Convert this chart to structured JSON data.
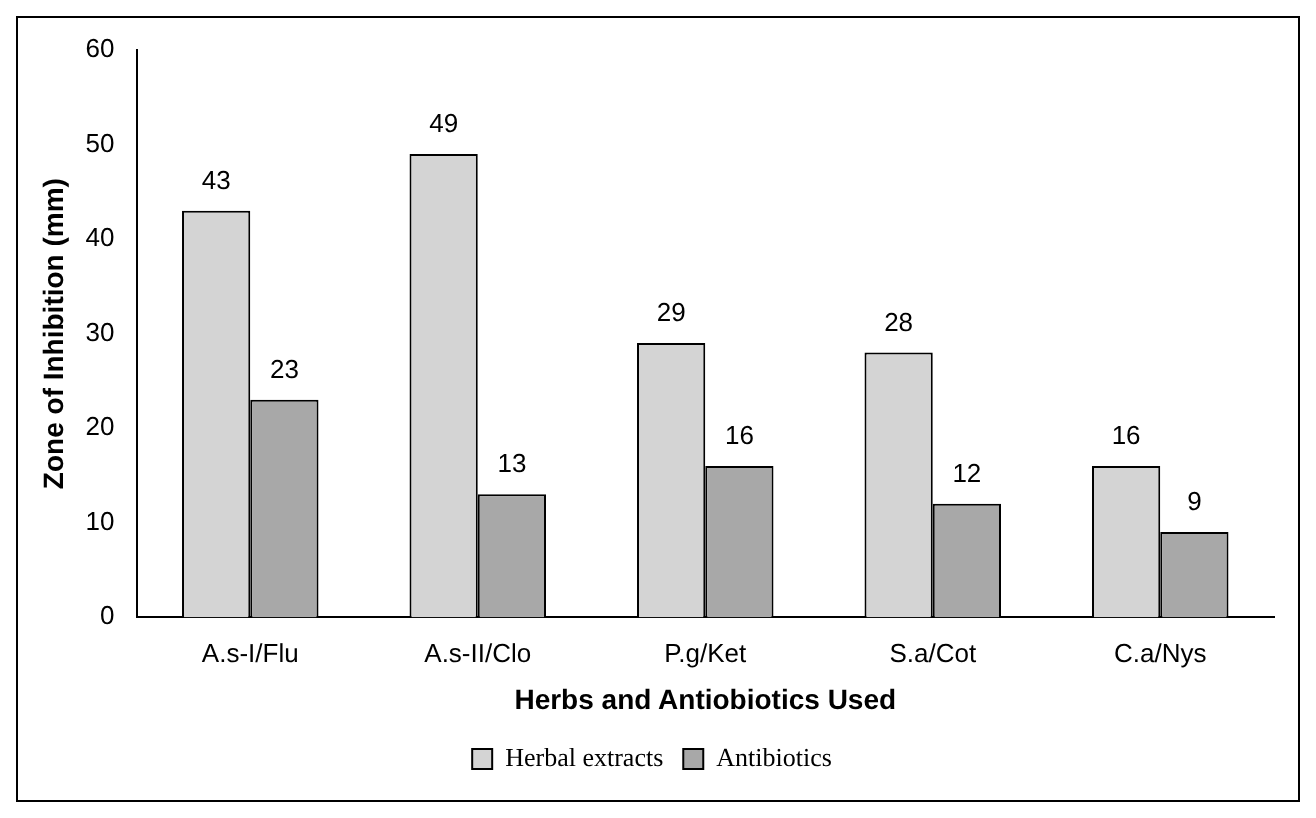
{
  "chart_data": {
    "type": "bar",
    "xlabel": "Herbs and Antiobiotics Used",
    "ylabel": "Zone of Inhibition (mm)",
    "categories": [
      "A.s-I/Flu",
      "A.s-II/Clo",
      "P.g/Ket",
      "S.a/Cot",
      "C.a/Nys"
    ],
    "series": [
      {
        "name": "Herbal extracts",
        "color": "#d4d4d4",
        "values": [
          43,
          49,
          29,
          28,
          16
        ]
      },
      {
        "name": "Antibiotics",
        "color": "#a8a8a8",
        "values": [
          23,
          13,
          16,
          12,
          9
        ]
      }
    ],
    "ylim": [
      0,
      60
    ],
    "yticks": [
      0,
      10,
      20,
      30,
      40,
      50,
      60
    ],
    "grid": false,
    "legend": "bottom",
    "data_labels": true
  }
}
